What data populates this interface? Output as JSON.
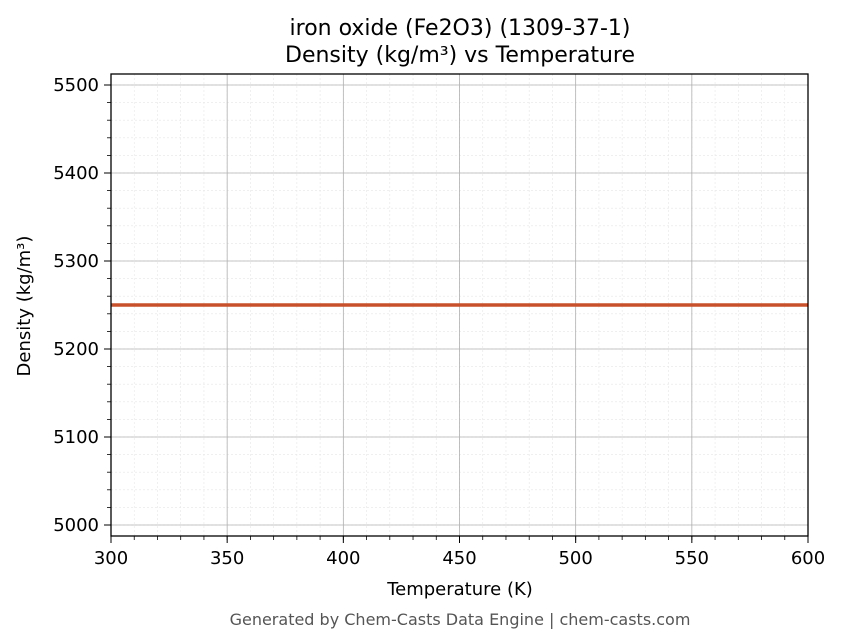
{
  "chart_data": {
    "type": "line",
    "title": "iron oxide (Fe2O3) (1309-37-1)",
    "subtitle": "Density (kg/m³) vs Temperature",
    "xlabel": "Temperature (K)",
    "ylabel": "Density (kg/m³)",
    "xlim": [
      300,
      600
    ],
    "ylim": [
      4987.5,
      5512.5
    ],
    "x_ticks": [
      300,
      350,
      400,
      450,
      500,
      550,
      600
    ],
    "y_ticks": [
      5000,
      5100,
      5200,
      5300,
      5400,
      5500
    ],
    "x_minor_step": 10,
    "y_minor_step": 20,
    "grid": true,
    "series": [
      {
        "color": "#c8502a",
        "x": [
          300,
          600
        ],
        "y": [
          5250,
          5250
        ]
      }
    ]
  },
  "footer": "Generated by Chem-Casts Data Engine | chem-casts.com"
}
